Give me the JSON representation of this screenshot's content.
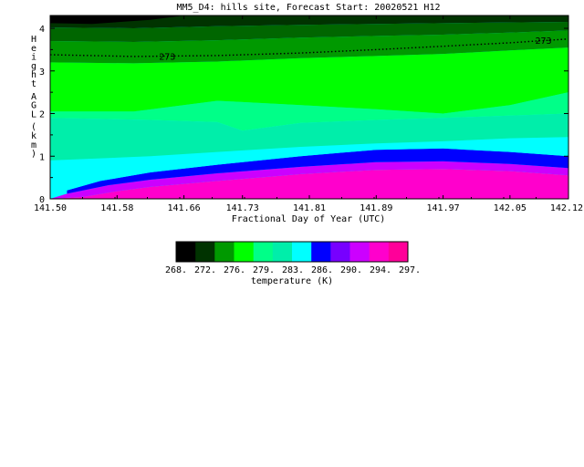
{
  "chart_data": {
    "type": "heatmap",
    "title": "MM5_D4: hills site,  Forecast Start: 20020521 H12",
    "xlabel": "Fractional Day of Year (UTC)",
    "ylabel": "Height AGL (km)",
    "x_ticks": [
      "141.50",
      "141.58",
      "141.66",
      "141.73",
      "141.81",
      "141.89",
      "141.97",
      "142.05",
      "142.12"
    ],
    "xlim": [
      141.5,
      142.12
    ],
    "y_ticks": [
      "0",
      "1",
      "2",
      "3",
      "4"
    ],
    "ylim": [
      0,
      4.3
    ],
    "colorbar": {
      "label": "temperature (K)",
      "levels": [
        268,
        272,
        276,
        279,
        283,
        286,
        290,
        294,
        297
      ],
      "level_labels": [
        "268.",
        "272.",
        "276.",
        "279.",
        "283.",
        "286.",
        "290.",
        "294.",
        "297."
      ],
      "colors": [
        "#000000",
        "#003300",
        "#006600",
        "#009900",
        "#00ff00",
        "#00ff88",
        "#00eeaa",
        "#00ffff",
        "#0000ff",
        "#7700ff",
        "#cc00ff",
        "#ff00cc"
      ]
    },
    "contour_line": {
      "value": 273,
      "label": "273"
    },
    "contour_labels": [
      "273",
      "273"
    ],
    "field": [
      {
        "label": "band 286-290",
        "color": "#0000ff",
        "lower": [
          [
            141.61,
            0.3
          ],
          [
            141.7,
            0.45
          ],
          [
            141.8,
            0.62
          ],
          [
            141.89,
            0.72
          ],
          [
            141.97,
            0.75
          ],
          [
            142.05,
            0.68
          ],
          [
            142.12,
            0.55
          ]
        ],
        "upper": [
          [
            141.54,
            0.3
          ],
          [
            141.6,
            0.55
          ],
          [
            141.7,
            0.75
          ],
          [
            141.8,
            0.95
          ],
          [
            141.89,
            1.12
          ],
          [
            141.97,
            1.18
          ],
          [
            142.05,
            1.15
          ],
          [
            142.12,
            1.0
          ]
        ]
      }
    ]
  }
}
